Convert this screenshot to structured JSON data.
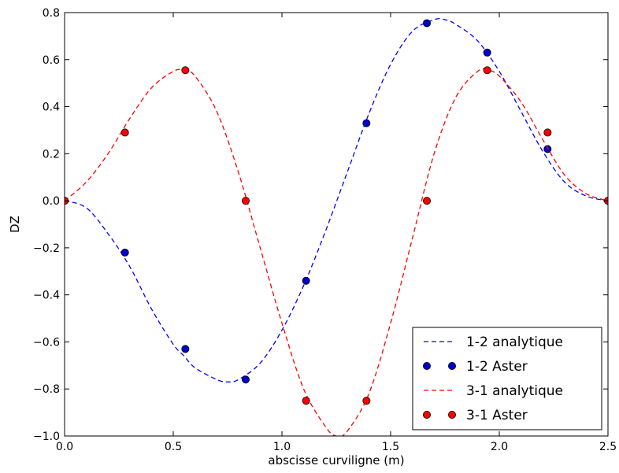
{
  "chart_data": {
    "type": "line",
    "xlabel": "abscisse curviligne (m)",
    "ylabel": "DZ",
    "xlim": [
      0.0,
      2.5
    ],
    "ylim": [
      -1.0,
      0.8
    ],
    "x_ticks": [
      "0.0",
      "0.5",
      "1.0",
      "1.5",
      "2.0",
      "2.5"
    ],
    "y_ticks": [
      "−1.0",
      "−0.8",
      "−0.6",
      "−0.4",
      "−0.2",
      "0.0",
      "0.2",
      "0.4",
      "0.6",
      "0.8"
    ],
    "grid": false,
    "legend_position": "lower-right",
    "series": [
      {
        "name": "1-2 analytique",
        "style": "dashed-line",
        "color": "#0000ff",
        "x": [
          0.0,
          0.1,
          0.2,
          0.3,
          0.4,
          0.5,
          0.55,
          0.6,
          0.7,
          0.75,
          0.8,
          0.9,
          1.0,
          1.1,
          1.2,
          1.3,
          1.4,
          1.5,
          1.6,
          1.7,
          1.75,
          1.8,
          1.9,
          2.0,
          2.1,
          2.2,
          2.3,
          2.4,
          2.5
        ],
        "y": [
          0.0,
          -0.03,
          -0.14,
          -0.28,
          -0.46,
          -0.61,
          -0.66,
          -0.71,
          -0.76,
          -0.77,
          -0.76,
          -0.69,
          -0.55,
          -0.36,
          -0.13,
          0.12,
          0.37,
          0.58,
          0.72,
          0.77,
          0.77,
          0.75,
          0.68,
          0.55,
          0.38,
          0.21,
          0.08,
          0.02,
          0.0
        ]
      },
      {
        "name": "1-2 Aster",
        "style": "markers",
        "color": "#0000cd",
        "x": [
          0.0,
          0.2778,
          0.5556,
          0.8333,
          1.1111,
          1.3889,
          1.6667,
          1.9444,
          2.2222,
          2.5
        ],
        "y": [
          0.0,
          -0.22,
          -0.63,
          -0.76,
          -0.34,
          0.33,
          0.755,
          0.63,
          0.22,
          0.0
        ]
      },
      {
        "name": "3-1 analytique",
        "style": "dashed-line",
        "color": "#ff0000",
        "x": [
          0.0,
          0.1,
          0.2,
          0.3,
          0.4,
          0.5,
          0.55,
          0.6,
          0.7,
          0.8,
          0.9,
          1.0,
          1.1,
          1.2,
          1.25,
          1.3,
          1.4,
          1.5,
          1.6,
          1.7,
          1.8,
          1.9,
          1.95,
          2.0,
          2.1,
          2.2,
          2.3,
          2.4,
          2.5
        ],
        "y": [
          0.0,
          0.08,
          0.2,
          0.35,
          0.48,
          0.55,
          0.555,
          0.53,
          0.38,
          0.12,
          -0.2,
          -0.52,
          -0.8,
          -0.96,
          -1.0,
          -0.98,
          -0.82,
          -0.52,
          -0.16,
          0.2,
          0.44,
          0.55,
          0.555,
          0.53,
          0.42,
          0.26,
          0.11,
          0.03,
          0.0
        ]
      },
      {
        "name": "3-1 Aster",
        "style": "markers",
        "color": "#ff0000",
        "x": [
          0.0,
          0.2778,
          0.5556,
          0.8333,
          1.1111,
          1.3889,
          1.6667,
          1.9444,
          2.2222,
          2.5
        ],
        "y": [
          0.0,
          0.29,
          0.555,
          0.0,
          -0.85,
          -0.85,
          0.0,
          0.555,
          0.29,
          0.0
        ]
      }
    ]
  }
}
